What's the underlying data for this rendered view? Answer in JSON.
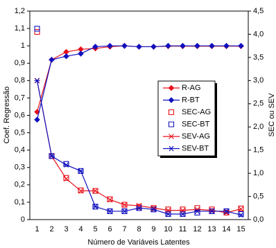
{
  "chart_data": {
    "type": "line",
    "categories": [
      "1",
      "2",
      "3",
      "4",
      "5",
      "6",
      "7",
      "8",
      "9",
      "10",
      "11",
      "12",
      "13",
      "14",
      "15"
    ],
    "x_label": "Número de Variáveis Latentes",
    "y_label": "Coef. Regressão",
    "y2_label": "SEC ou SEV",
    "ylim": [
      0,
      1.2
    ],
    "yticks": [
      0,
      {
        "value": 0.1,
        "label": "0,1"
      },
      {
        "value": 0.2,
        "label": "0,2"
      },
      {
        "value": 0.3,
        "label": "0,3"
      },
      {
        "value": 0.4,
        "label": "0,4"
      },
      {
        "value": 0.5,
        "label": "0,5"
      },
      {
        "value": 0.6,
        "label": "0,6"
      },
      {
        "value": 0.7,
        "label": "0,7"
      },
      {
        "value": 0.8,
        "label": "0,8"
      },
      {
        "value": 0.9,
        "label": "0,9"
      },
      1,
      {
        "value": 1.1,
        "label": "1,1"
      },
      {
        "value": 1.2,
        "label": "1,2"
      }
    ],
    "y2lim": [
      0,
      4.5
    ],
    "y2ticks": [
      {
        "value": 0,
        "label": "0,0"
      },
      {
        "value": 0.5,
        "label": "0,5"
      },
      {
        "value": 1,
        "label": "1,0"
      },
      {
        "value": 1.5,
        "label": "1,5"
      },
      {
        "value": 2,
        "label": "2,0"
      },
      {
        "value": 2.5,
        "label": "2,5"
      },
      {
        "value": 3,
        "label": "3,0"
      },
      {
        "value": 3.5,
        "label": "3,5"
      },
      {
        "value": 4,
        "label": "4,0"
      },
      {
        "value": 4.5,
        "label": "4,5"
      }
    ],
    "grid": false,
    "series": [
      {
        "name": "R-AG",
        "color": "#e8101a",
        "marker": "diamond",
        "line": true,
        "values": [
          0.62,
          0.92,
          0.965,
          0.98,
          0.985,
          0.995,
          1.0,
          0.995,
          0.995,
          0.998,
          0.998,
          0.998,
          0.998,
          0.998,
          0.998
        ]
      },
      {
        "name": "R-BT",
        "color": "#1010c0",
        "marker": "diamond",
        "line": true,
        "values": [
          0.575,
          0.92,
          0.94,
          0.955,
          0.995,
          1.0,
          1.0,
          0.995,
          0.995,
          1.0,
          1.0,
          1.0,
          1.0,
          1.0,
          1.0
        ]
      },
      {
        "name": "SEC-AG",
        "color": "#e8101a",
        "marker": "square",
        "line": false,
        "axis": "y2",
        "values": [
          4.05,
          1.37,
          0.9,
          0.63,
          0.62,
          0.44,
          0.32,
          0.28,
          0.25,
          0.22,
          0.22,
          0.25,
          0.22,
          0.15,
          0.24
        ]
      },
      {
        "name": "SEC-BT",
        "color": "#1010c0",
        "marker": "square",
        "line": false,
        "axis": "y2",
        "values": [
          4.12,
          1.37,
          1.2,
          1.05,
          0.28,
          0.18,
          0.18,
          0.25,
          0.22,
          0.12,
          0.12,
          0.15,
          0.18,
          0.18,
          0.12
        ]
      },
      {
        "name": "SEV-AG",
        "color": "#e8101a",
        "marker": "x",
        "line": true,
        "axis": "y2",
        "values": [
          3.0,
          1.37,
          0.88,
          0.62,
          0.62,
          0.43,
          0.32,
          0.3,
          0.25,
          0.2,
          0.2,
          0.22,
          0.2,
          0.15,
          0.23
        ]
      },
      {
        "name": "SEV-BT",
        "color": "#1010c0",
        "marker": "star",
        "line": true,
        "axis": "y2",
        "values": [
          3.0,
          1.37,
          1.18,
          1.05,
          0.28,
          0.18,
          0.18,
          0.25,
          0.22,
          0.12,
          0.12,
          0.18,
          0.18,
          0.18,
          0.1
        ]
      }
    ]
  }
}
